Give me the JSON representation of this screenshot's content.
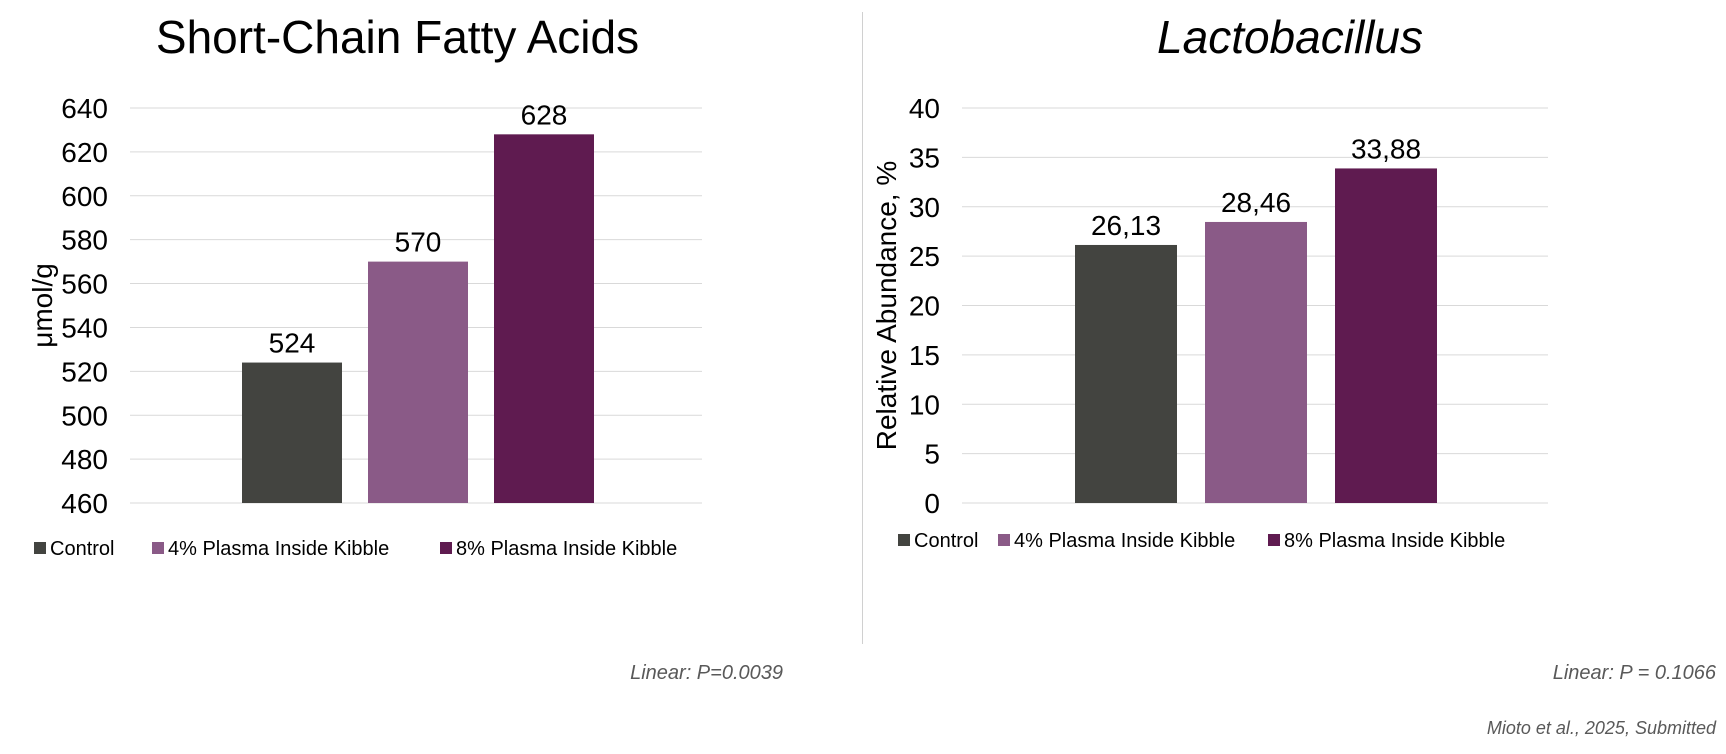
{
  "colors": {
    "control": "#434440",
    "plasma_4": "#8a5a87",
    "plasma_8": "#5f1b50",
    "grid": "#d9d9d9",
    "divider": "#d0d0d0"
  },
  "chart_data": [
    {
      "type": "bar",
      "title": "Short-Chain Fatty Acids",
      "ylabel": "μmol/g",
      "xlabel": "",
      "ylim": [
        460,
        640
      ],
      "yticks": [
        "460",
        "480",
        "500",
        "520",
        "540",
        "560",
        "580",
        "600",
        "620",
        "640"
      ],
      "grid": true,
      "legend_position": "bottom",
      "series": [
        {
          "name": "Control",
          "values": [
            524
          ],
          "label": "524"
        },
        {
          "name": "4% Plasma Inside Kibble",
          "values": [
            570
          ],
          "label": "570"
        },
        {
          "name": "8% Plasma Inside Kibble",
          "values": [
            628
          ],
          "label": "628"
        }
      ],
      "annotation": "Linear:  P=0.0039"
    },
    {
      "type": "bar",
      "title": "Lactobacillus",
      "ylabel": "Relative Abundance, %",
      "xlabel": "",
      "ylim": [
        0,
        40
      ],
      "yticks": [
        "0",
        "5",
        "10",
        "15",
        "20",
        "25",
        "30",
        "35",
        "40"
      ],
      "grid": true,
      "legend_position": "bottom",
      "series": [
        {
          "name": "Control",
          "values": [
            26.13
          ],
          "label": "26,13"
        },
        {
          "name": "4% Plasma Inside Kibble",
          "values": [
            28.46
          ],
          "label": "28,46"
        },
        {
          "name": "8% Plasma Inside Kibble",
          "values": [
            33.88
          ],
          "label": "33,88"
        }
      ],
      "annotation": "Linear:  P = 0.1066"
    }
  ],
  "citation": "Mioto et al., 2025, Submitted"
}
